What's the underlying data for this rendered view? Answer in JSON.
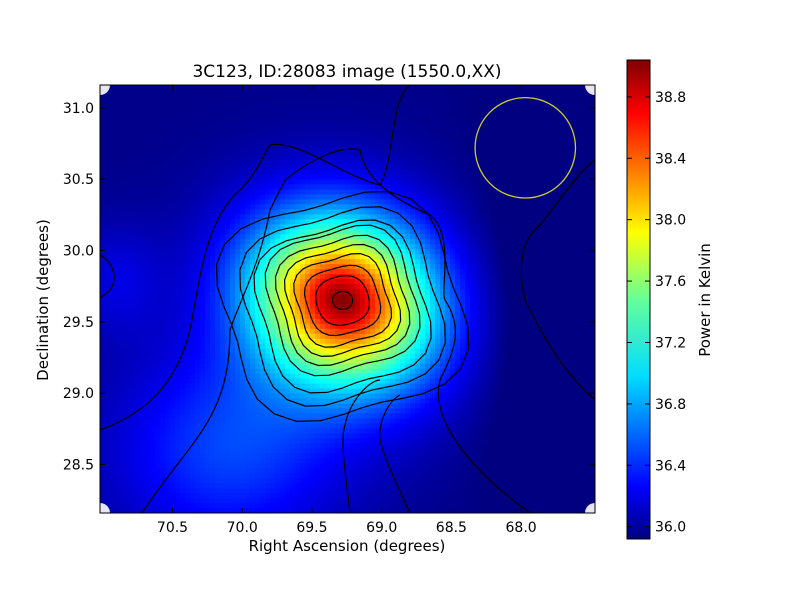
{
  "chart_data": {
    "type": "heatmap",
    "title": "3C123, ID:28083 image (1550.0,XX)",
    "xlabel": "Right Ascension (degrees)",
    "ylabel": "Declination (degrees)",
    "colorbar_label": "Power in Kelvin",
    "colormap": "jet",
    "x_inverted": true,
    "xlim": [
      71.02,
      67.47
    ],
    "ylim": [
      28.16,
      31.16
    ],
    "xticks": [
      70.5,
      70.0,
      69.5,
      69.0,
      68.5,
      68.0
    ],
    "xtick_labels": [
      "70.5",
      "70.0",
      "69.5",
      "69.0",
      "68.5",
      "68.0"
    ],
    "yticks": [
      28.5,
      29.0,
      29.5,
      30.0,
      30.5,
      31.0
    ],
    "ytick_labels": [
      "28.5",
      "29.0",
      "29.5",
      "30.0",
      "30.5",
      "31.0"
    ],
    "color_range": [
      35.92,
      39.04
    ],
    "colorbar_ticks": [
      36.0,
      36.4,
      36.8,
      37.2,
      37.6,
      38.0,
      38.4,
      38.8
    ],
    "colorbar_tick_labels": [
      "36.0",
      "36.4",
      "36.8",
      "37.2",
      "37.6",
      "38.0",
      "38.4",
      "38.8"
    ],
    "peak": {
      "ra": 69.28,
      "dec": 29.65,
      "value": 39.0
    },
    "contours": "black",
    "annotations": [
      {
        "shape": "circle",
        "ra": 67.97,
        "dec": 30.72,
        "radius_deg": 0.36,
        "color": "#cccc33"
      }
    ]
  }
}
